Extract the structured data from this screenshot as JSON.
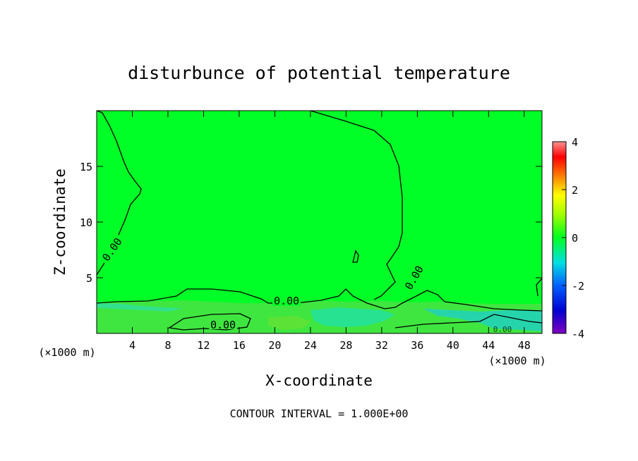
{
  "chart_data": {
    "type": "heatmap",
    "title": "disturbunce of potential temperature",
    "xlabel": "X-coordinate",
    "ylabel": "Z-coordinate",
    "x_unit": "(×1000 m)",
    "x_unit_right": "(×1000 m)",
    "footer": "CONTOUR INTERVAL = 1.000E+00",
    "xlim": [
      0,
      50
    ],
    "ylim": [
      0,
      20
    ],
    "x_ticks": [
      4,
      8,
      12,
      16,
      20,
      24,
      28,
      32,
      36,
      40,
      44,
      48
    ],
    "y_ticks": [
      5,
      10,
      15
    ],
    "colorbar": {
      "range": [
        -4,
        4
      ],
      "ticks": [
        4,
        2,
        0,
        -2,
        -4
      ]
    },
    "contour_labels": [
      "0.00",
      "0.00",
      "0.00",
      "0.00",
      "0.00"
    ],
    "colors": {
      "background_field": "#00ff26",
      "boundary_layer": "#3fe640",
      "cold_pocket": "#22e0a0",
      "contour": "#000000"
    }
  }
}
